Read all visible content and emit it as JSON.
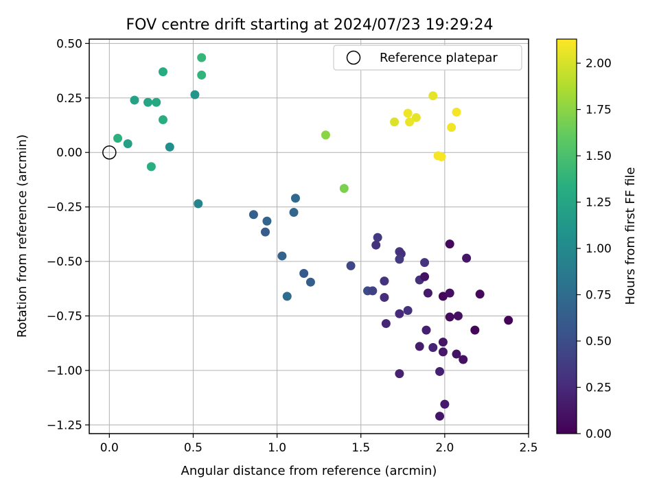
{
  "chart_data": {
    "type": "scatter",
    "title": "FOV centre drift starting at 2024/07/23 19:29:24",
    "xlabel": "Angular distance from reference (arcmin)",
    "ylabel": "Rotation from reference (arcmin)",
    "xlim": [
      -0.12,
      2.5
    ],
    "ylim": [
      -1.29,
      0.52
    ],
    "xticks": [
      "0.0",
      "0.5",
      "1.0",
      "1.5",
      "2.0",
      "2.5"
    ],
    "yticks": [
      "0.50",
      "0.25",
      "0.00",
      "−0.25",
      "−0.50",
      "−0.75",
      "−1.00",
      "−1.25"
    ],
    "grid": true,
    "legend": {
      "label": "Reference platepar",
      "position": "top-right"
    },
    "reference_point": {
      "x": 0.0,
      "y": 0.0
    },
    "colorbar": {
      "label": "Hours from first FF file",
      "colormap": "viridis",
      "range": [
        0.0,
        2.13
      ],
      "ticks": [
        "0.00",
        "0.25",
        "0.50",
        "0.75",
        "1.00",
        "1.25",
        "1.50",
        "1.75",
        "2.00"
      ]
    },
    "series": [
      {
        "points": [
          [
            0.55,
            0.435,
            1.4
          ],
          [
            0.55,
            0.355,
            1.38
          ],
          [
            0.32,
            0.37,
            1.3
          ],
          [
            0.51,
            0.265,
            1.1
          ],
          [
            0.15,
            0.24,
            1.22
          ],
          [
            0.23,
            0.23,
            1.25
          ],
          [
            0.28,
            0.23,
            1.28
          ],
          [
            0.32,
            0.15,
            1.32
          ],
          [
            0.05,
            0.065,
            1.35
          ],
          [
            0.11,
            0.04,
            1.2
          ],
          [
            0.36,
            0.025,
            1.05
          ],
          [
            0.25,
            -0.065,
            1.33
          ],
          [
            0.53,
            -0.235,
            0.95
          ],
          [
            1.29,
            0.08,
            1.75
          ],
          [
            1.4,
            -0.165,
            1.7
          ],
          [
            1.93,
            0.26,
            2.05
          ],
          [
            1.78,
            0.18,
            2.08
          ],
          [
            2.07,
            0.185,
            2.1
          ],
          [
            1.83,
            0.16,
            2.05
          ],
          [
            1.7,
            0.14,
            2.02
          ],
          [
            1.79,
            0.14,
            2.07
          ],
          [
            2.04,
            0.115,
            2.09
          ],
          [
            1.96,
            -0.015,
            2.1
          ],
          [
            1.98,
            -0.02,
            2.11
          ],
          [
            0.86,
            -0.285,
            0.65
          ],
          [
            0.94,
            -0.315,
            0.68
          ],
          [
            0.93,
            -0.365,
            0.62
          ],
          [
            1.11,
            -0.21,
            0.72
          ],
          [
            1.1,
            -0.275,
            0.7
          ],
          [
            1.03,
            -0.475,
            0.67
          ],
          [
            1.16,
            -0.555,
            0.6
          ],
          [
            1.2,
            -0.595,
            0.63
          ],
          [
            1.06,
            -0.66,
            0.75
          ],
          [
            1.44,
            -0.52,
            0.45
          ],
          [
            1.54,
            -0.635,
            0.48
          ],
          [
            1.57,
            -0.635,
            0.42
          ],
          [
            1.6,
            -0.39,
            0.35
          ],
          [
            1.59,
            -0.425,
            0.3
          ],
          [
            1.73,
            -0.455,
            0.33
          ],
          [
            1.74,
            -0.465,
            0.28
          ],
          [
            1.73,
            -0.49,
            0.36
          ],
          [
            1.64,
            -0.59,
            0.31
          ],
          [
            1.64,
            -0.665,
            0.27
          ],
          [
            1.65,
            -0.785,
            0.22
          ],
          [
            1.73,
            -0.74,
            0.25
          ],
          [
            1.78,
            -0.725,
            0.3
          ],
          [
            1.73,
            -1.015,
            0.2
          ],
          [
            1.85,
            -0.585,
            0.29
          ],
          [
            1.88,
            -0.505,
            0.32
          ],
          [
            1.88,
            -0.57,
            0.1
          ],
          [
            1.9,
            -0.645,
            0.15
          ],
          [
            1.89,
            -0.815,
            0.18
          ],
          [
            1.85,
            -0.89,
            0.17
          ],
          [
            1.93,
            -0.895,
            0.21
          ],
          [
            1.99,
            -0.87,
            0.12
          ],
          [
            1.99,
            -0.915,
            0.14
          ],
          [
            1.97,
            -1.005,
            0.19
          ],
          [
            2.0,
            -1.155,
            0.16
          ],
          [
            1.97,
            -1.21,
            0.13
          ],
          [
            2.03,
            -0.42,
            0.05
          ],
          [
            2.13,
            -0.485,
            0.12
          ],
          [
            1.99,
            -0.66,
            0.04
          ],
          [
            2.03,
            -0.645,
            0.08
          ],
          [
            2.03,
            -0.755,
            0.06
          ],
          [
            2.08,
            -0.75,
            0.09
          ],
          [
            2.21,
            -0.65,
            0.05
          ],
          [
            2.18,
            -0.815,
            0.03
          ],
          [
            2.07,
            -0.925,
            0.11
          ],
          [
            2.11,
            -0.95,
            0.1
          ],
          [
            2.38,
            -0.77,
            0.02
          ]
        ]
      }
    ]
  }
}
